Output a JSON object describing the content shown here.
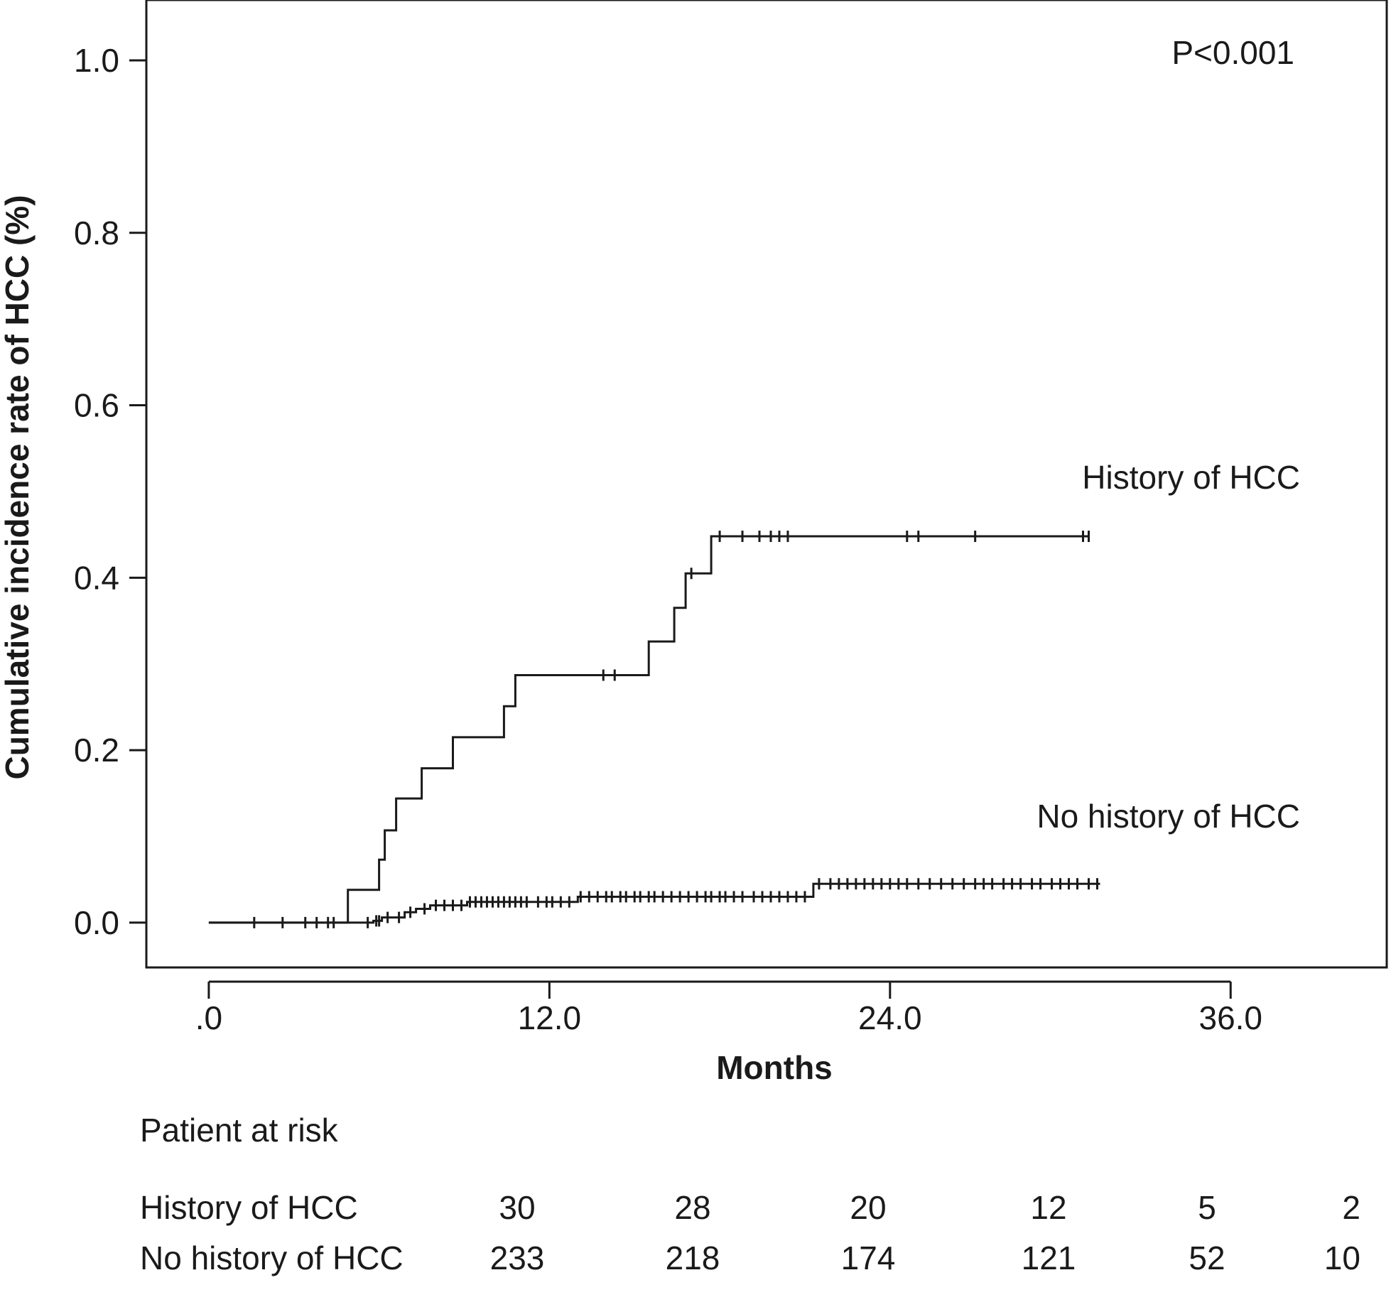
{
  "chart_data": {
    "type": "line",
    "title": "",
    "xlabel": "Months",
    "ylabel": "Cumulative incidence rate of HCC (%)",
    "xlim": [
      -2.2,
      41.5
    ],
    "ylim": [
      -0.052,
      1.07
    ],
    "x_ticks": [
      0,
      12,
      24,
      36
    ],
    "x_tick_labels": [
      ".0",
      "12.0",
      "24.0",
      "36.0"
    ],
    "y_ticks": [
      0,
      0.2,
      0.4,
      0.6,
      0.8,
      1.0
    ],
    "y_tick_labels": [
      "0.0",
      "0.2",
      "0.4",
      "0.6",
      "0.8",
      "1.0"
    ],
    "grid": false,
    "p_value": "P<0.001",
    "series": [
      {
        "name": "History of HCC",
        "step_points": [
          [
            0,
            0
          ],
          [
            4.9,
            0
          ],
          [
            4.9,
            0.038
          ],
          [
            6.0,
            0.038
          ],
          [
            6.0,
            0.073
          ],
          [
            6.2,
            0.073
          ],
          [
            6.2,
            0.107
          ],
          [
            6.6,
            0.107
          ],
          [
            6.6,
            0.144
          ],
          [
            7.5,
            0.144
          ],
          [
            7.5,
            0.179
          ],
          [
            8.6,
            0.179
          ],
          [
            8.6,
            0.215
          ],
          [
            10.4,
            0.215
          ],
          [
            10.4,
            0.251
          ],
          [
            10.8,
            0.251
          ],
          [
            10.8,
            0.287
          ],
          [
            15.5,
            0.287
          ],
          [
            15.5,
            0.326
          ],
          [
            16.4,
            0.326
          ],
          [
            16.4,
            0.365
          ],
          [
            16.8,
            0.365
          ],
          [
            16.8,
            0.405
          ],
          [
            17.7,
            0.405
          ],
          [
            17.7,
            0.448
          ],
          [
            31.0,
            0.448
          ]
        ],
        "censor_x": [
          1.6,
          2.6,
          3.4,
          3.8,
          4.2,
          4.4,
          13.9,
          14.3,
          17.0,
          18.0,
          18.8,
          19.4,
          19.8,
          20.1,
          20.4,
          24.6,
          25.0,
          27.0,
          30.8,
          31.0
        ]
      },
      {
        "name": "No history of HCC",
        "step_points": [
          [
            0,
            0
          ],
          [
            5.8,
            0
          ],
          [
            5.8,
            0.002
          ],
          [
            6.1,
            0.002
          ],
          [
            6.1,
            0.006
          ],
          [
            6.9,
            0.006
          ],
          [
            6.9,
            0.012
          ],
          [
            7.3,
            0.012
          ],
          [
            7.3,
            0.016
          ],
          [
            7.8,
            0.016
          ],
          [
            7.8,
            0.02
          ],
          [
            9.1,
            0.02
          ],
          [
            9.1,
            0.024
          ],
          [
            13.0,
            0.024
          ],
          [
            13.0,
            0.03
          ],
          [
            21.3,
            0.03
          ],
          [
            21.3,
            0.045
          ],
          [
            31.4,
            0.045
          ]
        ],
        "censor_x": [
          5.6,
          5.9,
          6.0,
          6.3,
          6.7,
          7.1,
          7.6,
          8.0,
          8.3,
          8.6,
          8.9,
          9.2,
          9.4,
          9.6,
          9.8,
          10.0,
          10.2,
          10.4,
          10.6,
          10.8,
          11.0,
          11.2,
          11.6,
          11.9,
          12.1,
          12.4,
          12.7,
          13.1,
          13.4,
          13.7,
          14.0,
          14.2,
          14.5,
          14.7,
          15.0,
          15.2,
          15.5,
          15.7,
          16.0,
          16.3,
          16.6,
          16.9,
          17.2,
          17.5,
          17.7,
          18.0,
          18.2,
          18.5,
          18.8,
          19.2,
          19.5,
          19.8,
          20.1,
          20.4,
          20.7,
          21.0,
          21.5,
          21.9,
          22.2,
          22.5,
          22.8,
          23.1,
          23.4,
          23.7,
          24.0,
          24.3,
          24.6,
          25.0,
          25.4,
          25.8,
          26.2,
          26.6,
          27.0,
          27.3,
          27.6,
          28.0,
          28.3,
          28.6,
          29.0,
          29.3,
          29.7,
          30.0,
          30.3,
          30.6,
          31.0,
          31.3
        ]
      }
    ],
    "curve_labels": [
      "History of HCC",
      "No history of HCC"
    ]
  },
  "risk_table": {
    "title": "Patient at risk",
    "rows": [
      {
        "label": "History of HCC",
        "values": [
          "30",
          "28",
          "20",
          "12",
          "5",
          "2"
        ]
      },
      {
        "label": "No history of HCC",
        "values": [
          "233",
          "218",
          "174",
          "121",
          "52",
          "10"
        ]
      }
    ]
  }
}
